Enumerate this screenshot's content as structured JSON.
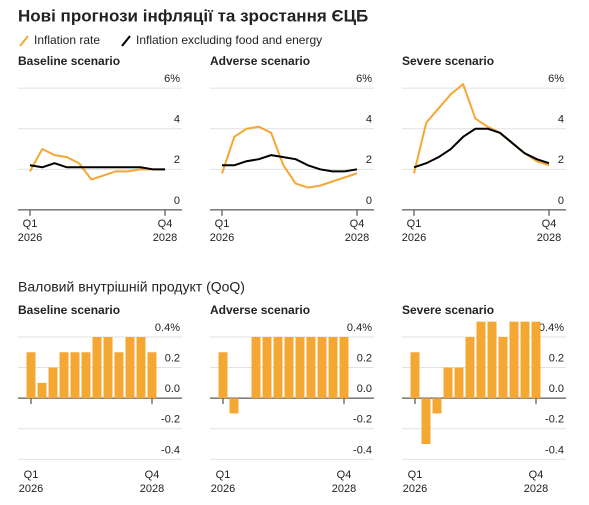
{
  "title": "Нові прогнози інфляції та зростання ЄЦБ",
  "section_title": "Валовий внутрішній продукт (QoQ)",
  "chart_data": [
    {
      "type": "line",
      "title": "Baseline scenario",
      "categories": [
        "Q1 2026",
        null,
        null,
        null,
        null,
        null,
        null,
        null,
        null,
        null,
        null,
        "Q4 2028"
      ],
      "series": [
        {
          "name": "Inflation rate",
          "color": "#f5a733",
          "values": [
            1.9,
            3.0,
            2.7,
            2.6,
            2.3,
            1.5,
            1.7,
            1.9,
            1.9,
            2.0,
            2.0,
            2.0
          ]
        },
        {
          "name": "Inflation excluding food and energy",
          "color": "#000000",
          "values": [
            2.2,
            2.1,
            2.3,
            2.1,
            2.1,
            2.1,
            2.1,
            2.1,
            2.1,
            2.1,
            2.0,
            2.0
          ]
        }
      ],
      "ylim": [
        -0.3,
        6.5
      ],
      "yticks": [
        0,
        2,
        4,
        {
          "value": 6,
          "label": "6%"
        }
      ],
      "grid": true
    },
    {
      "type": "line",
      "title": "Adverse scenario",
      "categories": [
        "Q1 2026",
        null,
        null,
        null,
        null,
        null,
        null,
        null,
        null,
        null,
        null,
        "Q4 2028"
      ],
      "series": [
        {
          "name": "Inflation rate",
          "color": "#f5a733",
          "values": [
            1.8,
            3.6,
            4.0,
            4.1,
            3.8,
            2.2,
            1.3,
            1.1,
            1.2,
            1.4,
            1.6,
            1.8
          ]
        },
        {
          "name": "Inflation excluding food and energy",
          "color": "#000000",
          "values": [
            2.2,
            2.2,
            2.4,
            2.5,
            2.7,
            2.6,
            2.5,
            2.2,
            2.0,
            1.9,
            1.9,
            2.0
          ]
        }
      ],
      "ylim": [
        -0.3,
        6.5
      ],
      "yticks": [
        0,
        2,
        4,
        {
          "value": 6,
          "label": "6%"
        }
      ],
      "grid": true
    },
    {
      "type": "line",
      "title": "Severe scenario",
      "categories": [
        "Q1 2026",
        null,
        null,
        null,
        null,
        null,
        null,
        null,
        null,
        null,
        null,
        "Q4 2028"
      ],
      "series": [
        {
          "name": "Inflation rate",
          "color": "#f5a733",
          "values": [
            1.8,
            4.3,
            5.0,
            5.7,
            6.2,
            4.5,
            4.1,
            3.8,
            3.3,
            2.8,
            2.4,
            2.2
          ]
        },
        {
          "name": "Inflation excluding food and energy",
          "color": "#000000",
          "values": [
            2.1,
            2.3,
            2.6,
            3.0,
            3.6,
            4.0,
            4.0,
            3.8,
            3.3,
            2.8,
            2.5,
            2.3
          ]
        }
      ],
      "ylim": [
        -0.3,
        6.5
      ],
      "yticks": [
        0,
        2,
        4,
        {
          "value": 6,
          "label": "6%"
        }
      ],
      "grid": true
    },
    {
      "type": "bar",
      "title": "Baseline scenario",
      "categories": [
        "Q1 2026",
        null,
        null,
        null,
        null,
        null,
        null,
        null,
        null,
        null,
        null,
        "Q4 2028"
      ],
      "values": [
        0.3,
        0.1,
        0.2,
        0.3,
        0.3,
        0.3,
        0.4,
        0.4,
        0.3,
        0.4,
        0.4,
        0.3
      ],
      "color": "#f5a733",
      "ylim": [
        -0.45,
        0.55
      ],
      "yticks": [
        -0.4,
        -0.2,
        {
          "value": 0,
          "label": "0.0"
        },
        0.2,
        {
          "value": 0.4,
          "label": "0.4%"
        }
      ],
      "grid": true
    },
    {
      "type": "bar",
      "title": "Adverse scenario",
      "categories": [
        "Q1 2026",
        null,
        null,
        null,
        null,
        null,
        null,
        null,
        null,
        null,
        null,
        "Q4 2028"
      ],
      "values": [
        0.3,
        -0.1,
        0.0,
        0.4,
        0.4,
        0.4,
        0.4,
        0.4,
        0.4,
        0.4,
        0.4,
        0.4
      ],
      "color": "#f5a733",
      "ylim": [
        -0.45,
        0.55
      ],
      "yticks": [
        -0.4,
        -0.2,
        {
          "value": 0,
          "label": "0.0"
        },
        0.2,
        {
          "value": 0.4,
          "label": "0.4%"
        }
      ],
      "grid": true
    },
    {
      "type": "bar",
      "title": "Severe scenario",
      "categories": [
        "Q1 2026",
        null,
        null,
        null,
        null,
        null,
        null,
        null,
        null,
        null,
        null,
        "Q4 2028"
      ],
      "values": [
        0.3,
        -0.3,
        -0.1,
        0.2,
        0.2,
        0.4,
        0.5,
        0.5,
        0.4,
        0.5,
        0.5,
        0.5
      ],
      "color": "#f5a733",
      "ylim": [
        -0.45,
        0.55
      ],
      "yticks": [
        -0.4,
        -0.2,
        {
          "value": 0,
          "label": "0.0"
        },
        0.2,
        {
          "value": 0.4,
          "label": "0.4%"
        }
      ],
      "grid": true
    }
  ]
}
